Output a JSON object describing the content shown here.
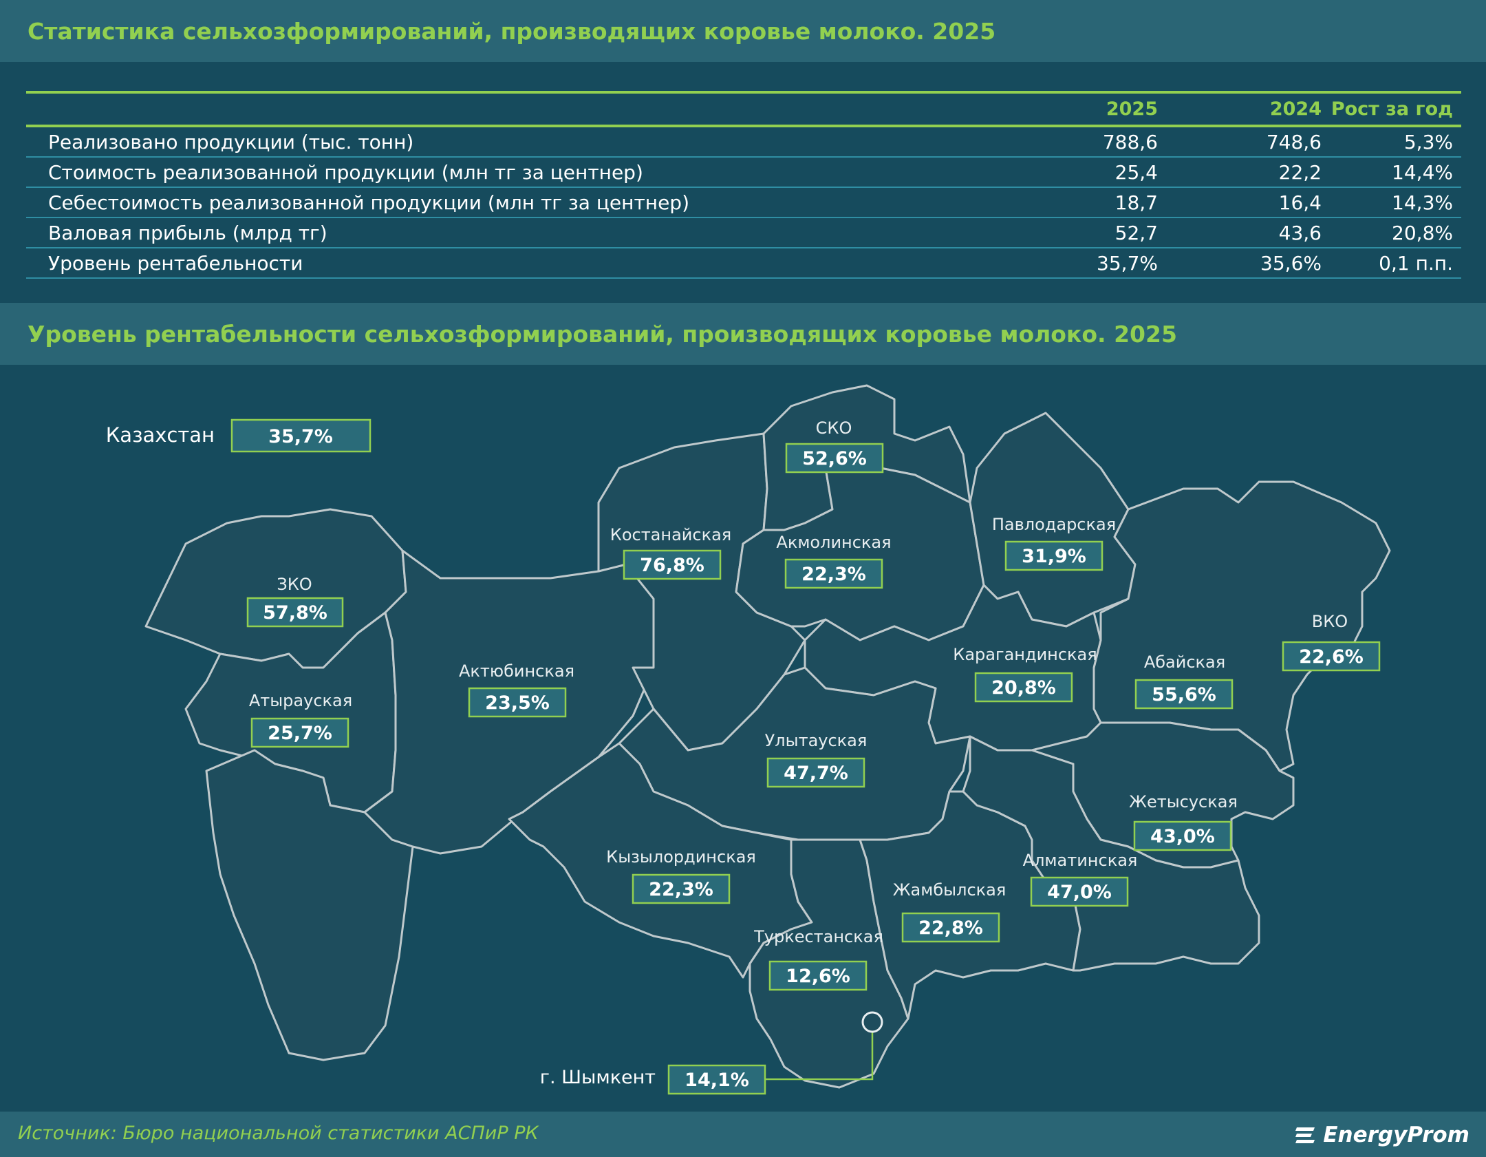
{
  "header": {
    "title": "Статистика сельхозформирований, производящих коровье молоко. 2025"
  },
  "stats_table": {
    "columns": [
      "",
      "2025",
      "2024",
      "Рост за год"
    ],
    "rows": [
      [
        "Реализовано продукции (тыс. тонн)",
        "788,6",
        "748,6",
        "5,3%"
      ],
      [
        "Стоимость реализованной продукции (млн тг за центнер)",
        "25,4",
        "22,2",
        "14,4%"
      ],
      [
        "Себестоимость реализованной продукции (млн тг за центнер)",
        "18,7",
        "16,4",
        "14,3%"
      ],
      [
        "Валовая прибыль (млрд тг)",
        "52,7",
        "43,6",
        "20,8%"
      ],
      [
        "Уровень рентабельности",
        "35,7%",
        "35,6%",
        "0,1 п.п."
      ]
    ]
  },
  "map_section": {
    "title": "Уровень рентабельности сельхозформирований, производящих коровье молоко. 2025",
    "country": {
      "name": "Казахстан",
      "value": "35,7%"
    },
    "regions": [
      {
        "name": "СКО",
        "value": "52,6%"
      },
      {
        "name": "Костанайская",
        "value": "76,8%"
      },
      {
        "name": "Акмолинская",
        "value": "22,3%"
      },
      {
        "name": "Павлодарская",
        "value": "31,9%"
      },
      {
        "name": "ЗКО",
        "value": "57,8%"
      },
      {
        "name": "ВКО",
        "value": "22,6%"
      },
      {
        "name": "Актюбинская",
        "value": "23,5%"
      },
      {
        "name": "Карагандинская",
        "value": "20,8%"
      },
      {
        "name": "Абайская",
        "value": "55,6%"
      },
      {
        "name": "Атырауская",
        "value": "25,7%"
      },
      {
        "name": "Улытауская",
        "value": "47,7%"
      },
      {
        "name": "Жетысуская",
        "value": "43,0%"
      },
      {
        "name": "Кызылординская",
        "value": "22,3%"
      },
      {
        "name": "Алматинская",
        "value": "47,0%"
      },
      {
        "name": "Жамбылская",
        "value": "22,8%"
      },
      {
        "name": "Туркестанская",
        "value": "12,6%"
      },
      {
        "name": "г. Шымкент",
        "value": "14,1%"
      }
    ]
  },
  "footer": {
    "source": "Источник: Бюро национальной статистики АСПиР РК",
    "brand": "EnergyProm"
  },
  "colors": {
    "accent": "#92d050",
    "background": "#164b5d",
    "band": "#2a6575",
    "region_fill": "#1e4d5d",
    "region_border": "#bfc9cc"
  }
}
